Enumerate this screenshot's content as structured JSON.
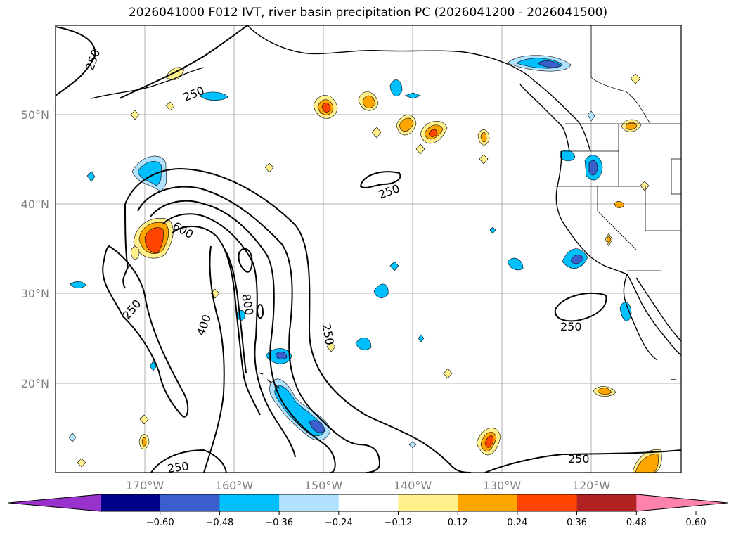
{
  "title": "2026041000 F012 IVT, river basin precipitation PC (2026041200 - 2026041500)",
  "lat_labels": [
    "50°N",
    "40°N",
    "30°N",
    "20°N"
  ],
  "lon_labels": [
    "170°W",
    "160°W",
    "150°W",
    "140°W",
    "130°W",
    "120°W"
  ],
  "contour_labels": {
    "c250_a": "250",
    "c250_b": "250",
    "c250_c": "250",
    "c250_d": "250",
    "c250_e": "250",
    "c250_f": "250",
    "c250_g": "250",
    "c250_h": "250",
    "c400": "400",
    "c600": "600",
    "c800": "800"
  },
  "colorbar": {
    "ticks": [
      "−0.60",
      "−0.48",
      "−0.36",
      "−0.24",
      "−0.12",
      "0.12",
      "0.24",
      "0.36",
      "0.48",
      "0.60"
    ],
    "colors": [
      "#9932cc",
      "#00008b",
      "#3a5fcd",
      "#00bfff",
      "#b0e2ff",
      "#ffffff",
      "#fff08c",
      "#ffa500",
      "#ff4500",
      "#b22222",
      "#ff82ab"
    ]
  },
  "colors": {
    "grid": "#b0b0b0",
    "coast": "#000000",
    "neg1": "#b0e2ff",
    "neg2": "#00bfff",
    "neg3": "#3a5fcd",
    "pos1": "#fff08c",
    "pos2": "#ffa500",
    "pos3": "#ff4500"
  }
}
